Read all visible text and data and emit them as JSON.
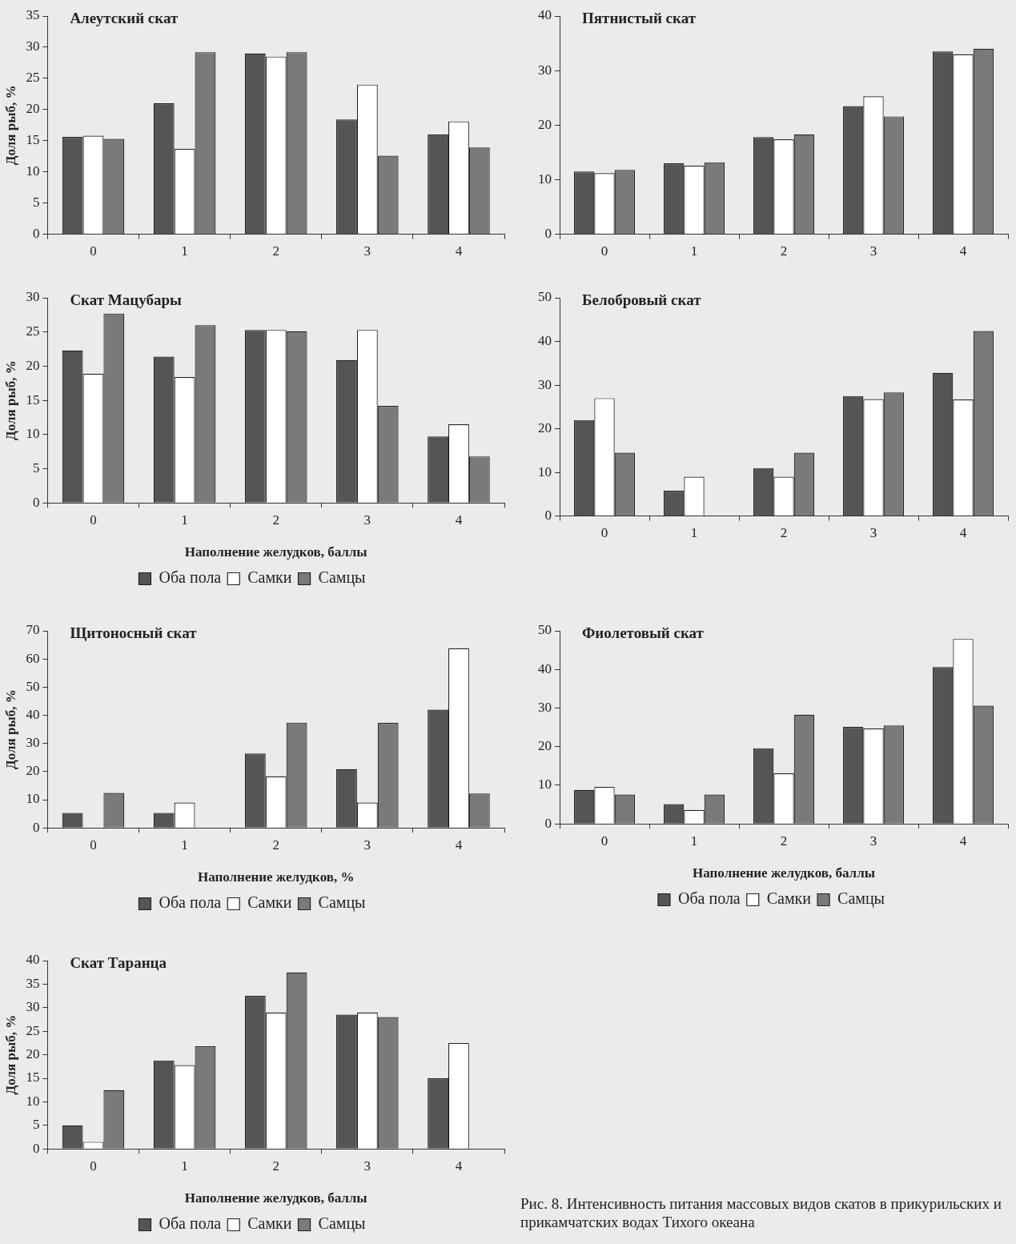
{
  "chart_data": [
    {
      "type": "bar",
      "title": "Алеутский скат",
      "ylabel": "Доля рыб, %",
      "categories": [
        "0",
        "1",
        "2",
        "3",
        "4"
      ],
      "series": [
        {
          "color": "#555555",
          "values": [
            15.6,
            21,
            29,
            18.4,
            16
          ]
        },
        {
          "color": "#ffffff",
          "values": [
            15.8,
            13.7,
            28.5,
            24,
            18.1
          ]
        },
        {
          "color": "#7a7a7a",
          "values": [
            15.3,
            29.2,
            29.2,
            12.6,
            13.9
          ]
        }
      ],
      "ylim": [
        0,
        35
      ],
      "yticks": [
        0,
        5,
        10,
        15,
        20,
        25,
        30,
        35
      ]
    },
    {
      "type": "bar",
      "title": "Пятнистый скат",
      "categories": [
        "0",
        "1",
        "2",
        "3",
        "4"
      ],
      "series": [
        {
          "color": "#555555",
          "values": [
            11.5,
            13,
            17.8,
            23.5,
            33.5
          ]
        },
        {
          "color": "#ffffff",
          "values": [
            11.2,
            12.6,
            17.4,
            25.3,
            33
          ]
        },
        {
          "color": "#7a7a7a",
          "values": [
            11.8,
            13.2,
            18.3,
            21.6,
            34
          ]
        }
      ],
      "ylim": [
        0,
        40
      ],
      "yticks": [
        0,
        10,
        20,
        30,
        40
      ]
    },
    {
      "type": "bar",
      "title": "Скат Мацубары",
      "ylabel": "Доля рыб, %",
      "xlabel": "Наполнение желудков, баллы",
      "legend": "bottom",
      "categories": [
        "0",
        "1",
        "2",
        "3",
        "4"
      ],
      "series": [
        {
          "name": "Оба пола",
          "color": "#555555",
          "values": [
            22.3,
            21.4,
            25.3,
            20.9,
            9.7
          ]
        },
        {
          "name": "Самки",
          "color": "#ffffff",
          "values": [
            18.9,
            18.4,
            25.3,
            25.3,
            11.5
          ]
        },
        {
          "name": "Самцы",
          "color": "#7a7a7a",
          "values": [
            27.7,
            26,
            25.1,
            14.2,
            6.8
          ]
        }
      ],
      "ylim": [
        0,
        30
      ],
      "yticks": [
        0,
        5,
        10,
        15,
        20,
        25,
        30
      ]
    },
    {
      "type": "bar",
      "title": "Белобровый скат",
      "categories": [
        "0",
        "1",
        "2",
        "3",
        "4"
      ],
      "series": [
        {
          "color": "#555555",
          "values": [
            22,
            5.8,
            11,
            27.5,
            32.8
          ]
        },
        {
          "color": "#ffffff",
          "values": [
            27,
            9,
            9,
            26.8,
            26.7
          ]
        },
        {
          "color": "#7a7a7a",
          "values": [
            14.5,
            0,
            14.5,
            28.3,
            42.4
          ]
        }
      ],
      "ylim": [
        0,
        50
      ],
      "yticks": [
        0,
        10,
        20,
        30,
        40,
        50
      ]
    },
    {
      "type": "bar",
      "title": "Щитоносный скат",
      "ylabel": "Доля рыб, %",
      "xlabel": "Наполнение желудков, %",
      "legend": "bottom",
      "categories": [
        "0",
        "1",
        "2",
        "3",
        "4"
      ],
      "series": [
        {
          "name": "Оба пола",
          "color": "#555555",
          "values": [
            5.3,
            5.3,
            26.4,
            20.9,
            42
          ]
        },
        {
          "name": "Самки",
          "color": "#ffffff",
          "values": [
            0,
            9,
            18.3,
            9,
            63.8
          ]
        },
        {
          "name": "Самцы",
          "color": "#7a7a7a",
          "values": [
            12.4,
            0,
            37.4,
            37.3,
            12.2
          ]
        }
      ],
      "ylim": [
        0,
        70
      ],
      "yticks": [
        0,
        10,
        20,
        30,
        40,
        50,
        60,
        70
      ]
    },
    {
      "type": "bar",
      "title": "Фиолетовый скат",
      "xlabel": "Наполнение желудков, баллы",
      "legend": "bottom",
      "categories": [
        "0",
        "1",
        "2",
        "3",
        "4"
      ],
      "series": [
        {
          "name": "Оба пола",
          "color": "#555555",
          "values": [
            8.8,
            5.1,
            19.6,
            25.1,
            40.6
          ]
        },
        {
          "name": "Самки",
          "color": "#ffffff",
          "values": [
            9.6,
            3.6,
            13.1,
            24.7,
            47.9
          ]
        },
        {
          "name": "Самцы",
          "color": "#7a7a7a",
          "values": [
            7.6,
            7.6,
            28.3,
            25.5,
            30.6
          ]
        }
      ],
      "ylim": [
        0,
        50
      ],
      "yticks": [
        0,
        10,
        20,
        30,
        40,
        50
      ]
    },
    {
      "type": "bar",
      "title": "Скат Таранца",
      "ylabel": "Доля рыб, %",
      "xlabel": "Наполнение желудков, баллы",
      "legend": "bottom",
      "categories": [
        "0",
        "1",
        "2",
        "3",
        "4"
      ],
      "series": [
        {
          "name": "Оба пола",
          "color": "#555555",
          "values": [
            5,
            18.8,
            32.5,
            28.5,
            15
          ]
        },
        {
          "name": "Самки",
          "color": "#ffffff",
          "values": [
            1.5,
            17.8,
            29,
            29,
            22.5
          ]
        },
        {
          "name": "Самцы",
          "color": "#7a7a7a",
          "values": [
            12.5,
            21.8,
            37.5,
            28,
            0
          ]
        }
      ],
      "ylim": [
        0,
        40
      ],
      "yticks": [
        0,
        5,
        10,
        15,
        20,
        25,
        30,
        35,
        40
      ],
      "annotations": [
        "Рис. 8. Интенсивность питания массовых видов скатов в прикурильских и прикамчатских водах Тихого океана"
      ]
    }
  ]
}
